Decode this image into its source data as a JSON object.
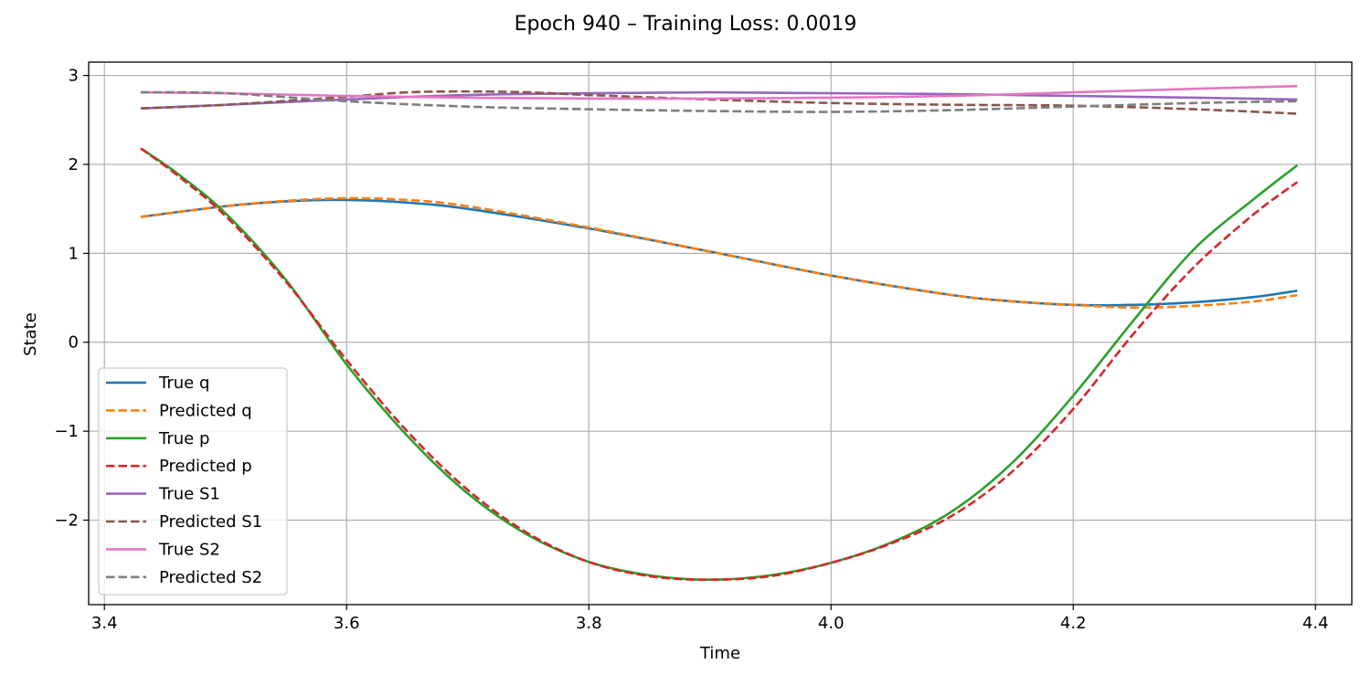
{
  "chart_data": {
    "type": "line",
    "title": "Epoch 940 – Training Loss: 0.0019",
    "xlabel": "Time",
    "ylabel": "State",
    "xlim": [
      3.387,
      4.43
    ],
    "ylim": [
      -2.95,
      3.15
    ],
    "xticks": [
      3.4,
      3.6,
      3.8,
      4.0,
      4.2,
      4.4
    ],
    "xtick_labels": [
      "3.4",
      "3.6",
      "3.8",
      "4.0",
      "4.2",
      "4.4"
    ],
    "yticks": [
      -2,
      -1,
      0,
      1,
      2,
      3
    ],
    "ytick_labels": [
      "−2",
      "−1",
      "0",
      "1",
      "2",
      "3"
    ],
    "grid": true,
    "legend_position": "lower-left",
    "series": [
      {
        "name": "True q",
        "color": "#1f77b4",
        "style": "solid",
        "points": [
          [
            3.43,
            1.41
          ],
          [
            3.5,
            1.53
          ],
          [
            3.55,
            1.585
          ],
          [
            3.6,
            1.6
          ],
          [
            3.65,
            1.57
          ],
          [
            3.7,
            1.5
          ],
          [
            3.8,
            1.28
          ],
          [
            3.9,
            1.02
          ],
          [
            4.0,
            0.75
          ],
          [
            4.1,
            0.53
          ],
          [
            4.15,
            0.46
          ],
          [
            4.2,
            0.42
          ],
          [
            4.25,
            0.42
          ],
          [
            4.3,
            0.45
          ],
          [
            4.35,
            0.51
          ],
          [
            4.385,
            0.58
          ]
        ]
      },
      {
        "name": "Predicted q",
        "color": "#ff7f0e",
        "style": "dashed",
        "points": [
          [
            3.43,
            1.41
          ],
          [
            3.5,
            1.53
          ],
          [
            3.55,
            1.59
          ],
          [
            3.6,
            1.62
          ],
          [
            3.65,
            1.6
          ],
          [
            3.7,
            1.53
          ],
          [
            3.8,
            1.29
          ],
          [
            3.9,
            1.02
          ],
          [
            4.0,
            0.75
          ],
          [
            4.1,
            0.53
          ],
          [
            4.15,
            0.46
          ],
          [
            4.2,
            0.42
          ],
          [
            4.25,
            0.39
          ],
          [
            4.3,
            0.41
          ],
          [
            4.35,
            0.46
          ],
          [
            4.385,
            0.53
          ]
        ]
      },
      {
        "name": "True p",
        "color": "#2ca02c",
        "style": "solid",
        "points": [
          [
            3.43,
            2.18
          ],
          [
            3.46,
            1.9
          ],
          [
            3.5,
            1.45
          ],
          [
            3.55,
            0.7
          ],
          [
            3.6,
            -0.25
          ],
          [
            3.65,
            -1.05
          ],
          [
            3.7,
            -1.7
          ],
          [
            3.75,
            -2.17
          ],
          [
            3.8,
            -2.47
          ],
          [
            3.85,
            -2.62
          ],
          [
            3.9,
            -2.67
          ],
          [
            3.95,
            -2.62
          ],
          [
            4.0,
            -2.48
          ],
          [
            4.05,
            -2.25
          ],
          [
            4.1,
            -1.9
          ],
          [
            4.15,
            -1.35
          ],
          [
            4.2,
            -0.6
          ],
          [
            4.25,
            0.25
          ],
          [
            4.3,
            1.05
          ],
          [
            4.35,
            1.62
          ],
          [
            4.385,
            1.99
          ]
        ]
      },
      {
        "name": "Predicted p",
        "color": "#d62728",
        "style": "dashed",
        "points": [
          [
            3.43,
            2.18
          ],
          [
            3.46,
            1.88
          ],
          [
            3.5,
            1.42
          ],
          [
            3.55,
            0.68
          ],
          [
            3.6,
            -0.2
          ],
          [
            3.65,
            -1.0
          ],
          [
            3.7,
            -1.66
          ],
          [
            3.75,
            -2.15
          ],
          [
            3.8,
            -2.47
          ],
          [
            3.85,
            -2.63
          ],
          [
            3.9,
            -2.67
          ],
          [
            3.95,
            -2.63
          ],
          [
            4.0,
            -2.48
          ],
          [
            4.05,
            -2.26
          ],
          [
            4.1,
            -1.95
          ],
          [
            4.15,
            -1.45
          ],
          [
            4.2,
            -0.75
          ],
          [
            4.25,
            0.1
          ],
          [
            4.3,
            0.85
          ],
          [
            4.35,
            1.45
          ],
          [
            4.385,
            1.8
          ]
        ]
      },
      {
        "name": "True S1",
        "color": "#9467bd",
        "style": "solid",
        "points": [
          [
            3.43,
            2.63
          ],
          [
            3.5,
            2.67
          ],
          [
            3.6,
            2.73
          ],
          [
            3.7,
            2.78
          ],
          [
            3.8,
            2.8
          ],
          [
            3.9,
            2.81
          ],
          [
            4.0,
            2.8
          ],
          [
            4.1,
            2.79
          ],
          [
            4.2,
            2.77
          ],
          [
            4.3,
            2.75
          ],
          [
            4.385,
            2.73
          ]
        ]
      },
      {
        "name": "Predicted S1",
        "color": "#8c564b",
        "style": "dashed",
        "points": [
          [
            3.43,
            2.63
          ],
          [
            3.5,
            2.67
          ],
          [
            3.6,
            2.76
          ],
          [
            3.65,
            2.81
          ],
          [
            3.7,
            2.82
          ],
          [
            3.75,
            2.81
          ],
          [
            3.8,
            2.78
          ],
          [
            3.9,
            2.73
          ],
          [
            4.0,
            2.69
          ],
          [
            4.1,
            2.67
          ],
          [
            4.2,
            2.66
          ],
          [
            4.3,
            2.62
          ],
          [
            4.385,
            2.57
          ]
        ]
      },
      {
        "name": "True S2",
        "color": "#e377c2",
        "style": "solid",
        "points": [
          [
            3.43,
            2.81
          ],
          [
            3.5,
            2.8
          ],
          [
            3.6,
            2.77
          ],
          [
            3.7,
            2.75
          ],
          [
            3.8,
            2.74
          ],
          [
            3.9,
            2.74
          ],
          [
            4.0,
            2.75
          ],
          [
            4.1,
            2.77
          ],
          [
            4.2,
            2.81
          ],
          [
            4.3,
            2.85
          ],
          [
            4.385,
            2.88
          ]
        ]
      },
      {
        "name": "Predicted S2",
        "color": "#7f7f7f",
        "style": "dashed",
        "points": [
          [
            3.43,
            2.81
          ],
          [
            3.5,
            2.8
          ],
          [
            3.6,
            2.71
          ],
          [
            3.7,
            2.65
          ],
          [
            3.8,
            2.62
          ],
          [
            3.9,
            2.6
          ],
          [
            4.0,
            2.59
          ],
          [
            4.1,
            2.61
          ],
          [
            4.2,
            2.65
          ],
          [
            4.3,
            2.69
          ],
          [
            4.385,
            2.71
          ]
        ]
      }
    ]
  }
}
